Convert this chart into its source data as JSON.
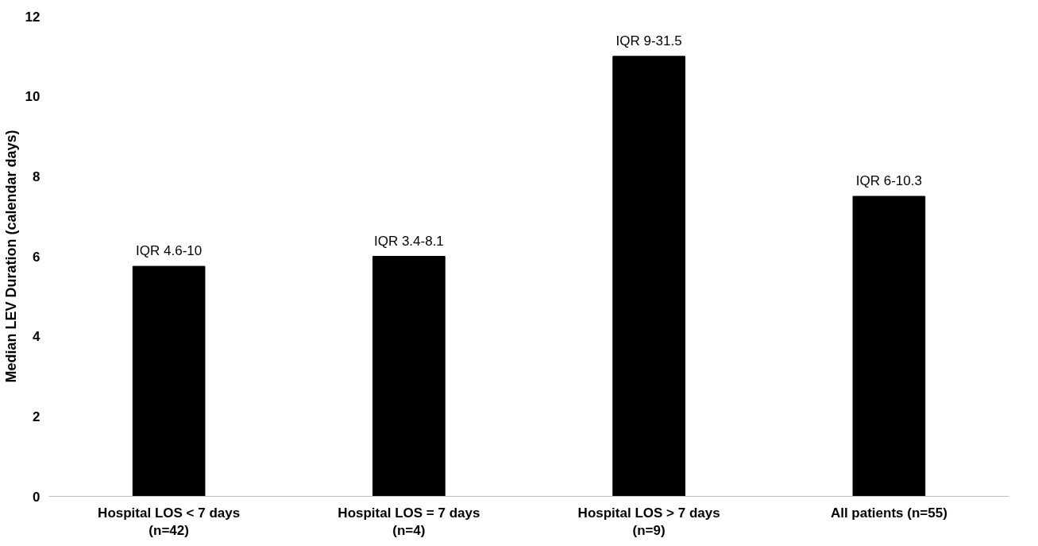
{
  "chart_data": {
    "type": "bar",
    "ylabel": "Median LEV Duration (calendar days)",
    "categories": [
      "Hospital LOS < 7 days (n=42)",
      "Hospital LOS = 7 days (n=4)",
      "Hospital LOS > 7 days (n=9)",
      "All patients (n=55)"
    ],
    "values": [
      5.75,
      6,
      11,
      7.5
    ],
    "value_labels": [
      "IQR 4.6-10",
      "IQR 3.4-8.1",
      "IQR 9-31.5",
      "IQR 6-10.3"
    ],
    "color": "#000000",
    "ylim": [
      0,
      12
    ],
    "yticks": [
      0,
      2,
      4,
      6,
      8,
      10,
      12
    ],
    "grid": false
  }
}
